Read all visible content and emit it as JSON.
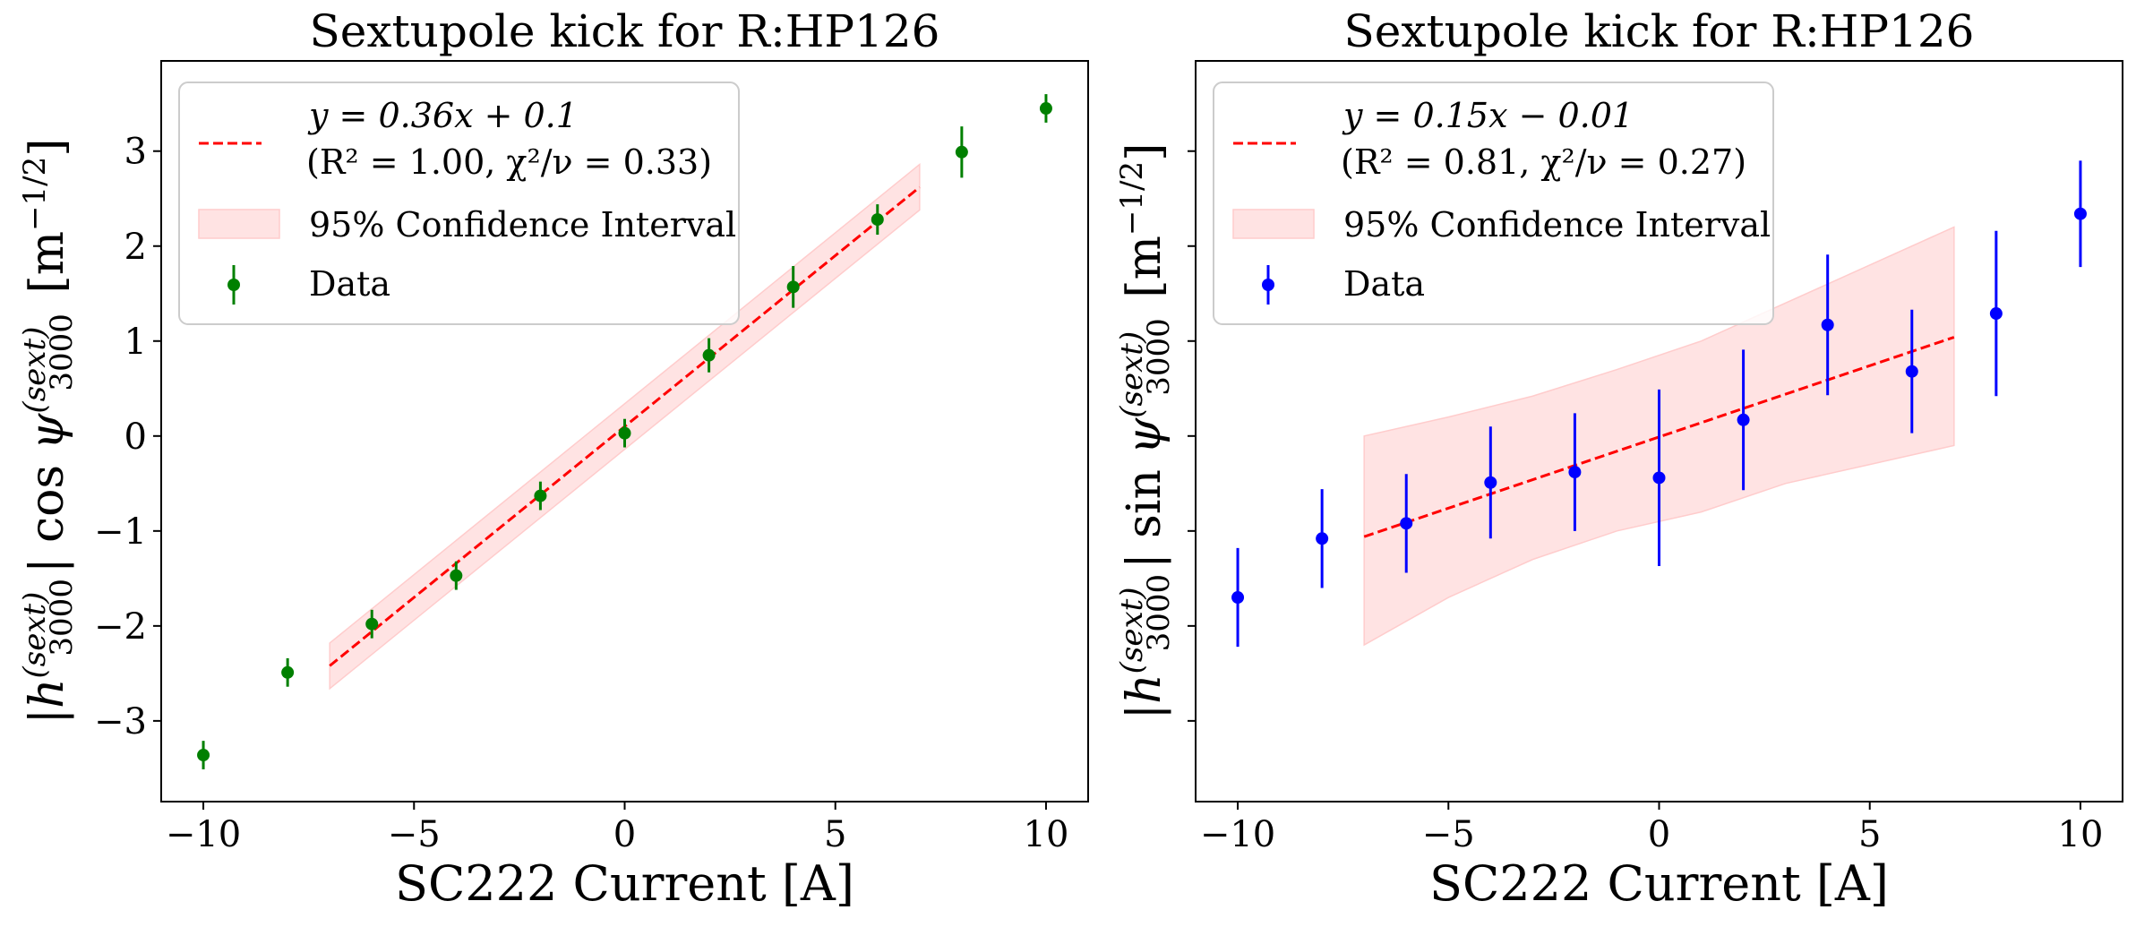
{
  "chart_data": [
    {
      "type": "scatter",
      "title": "Sextupole kick for R:HP126",
      "xlabel": "SC222 Current [A]",
      "ylabel": "|h3000(sext)| cos ψ3000(sext) [m−1/2]",
      "xlim": [
        -11,
        11
      ],
      "ylim": [
        -3.85,
        3.95
      ],
      "xticks": [
        -10,
        -5,
        0,
        5,
        10
      ],
      "xtick_labels": [
        "−10",
        "−5",
        "0",
        "5",
        "10"
      ],
      "yticks": [
        -3,
        -2,
        -1,
        0,
        1,
        2,
        3
      ],
      "ytick_labels": [
        "−3",
        "−2",
        "−1",
        "0",
        "1",
        "2",
        "3"
      ],
      "grid": false,
      "legend_position": "top-left",
      "marker_color": "#008000",
      "fit_color": "#ff0000",
      "band_color": "#ffcccc",
      "fit": {
        "slope": 0.36,
        "intercept": 0.1,
        "x_range": [
          -7,
          7
        ],
        "band_halfwidth": 0.24
      },
      "legend": [
        {
          "label": "y = 0.36x + 0.1",
          "label2": "(R² = 1.00, χ²/ν = 0.33)"
        },
        {
          "label": "95% Confidence Interval"
        },
        {
          "label": "Data"
        }
      ],
      "x": [
        -10,
        -8,
        -6,
        -4,
        -2,
        0,
        2,
        4,
        6,
        8,
        10
      ],
      "y": [
        -3.36,
        -2.49,
        -1.98,
        -1.47,
        -0.63,
        0.03,
        0.85,
        1.57,
        2.28,
        2.99,
        3.45
      ],
      "yerr": [
        0.15,
        0.15,
        0.15,
        0.15,
        0.15,
        0.15,
        0.18,
        0.22,
        0.16,
        0.27,
        0.15
      ]
    },
    {
      "type": "scatter",
      "title": "Sextupole kick for R:HP126",
      "xlabel": "SC222 Current [A]",
      "ylabel": "|h3000(sext)| sin ψ3000(sext) [m−1/2]",
      "xlim": [
        -11,
        11
      ],
      "ylim": [
        -3.85,
        3.95
      ],
      "xticks": [
        -10,
        -5,
        0,
        5,
        10
      ],
      "xtick_labels": [
        "−10",
        "−5",
        "0",
        "5",
        "10"
      ],
      "yticks": [
        -3,
        -2,
        -1,
        0,
        1,
        2,
        3
      ],
      "ytick_labels": [],
      "grid": false,
      "legend_position": "top-left",
      "marker_color": "#0000ff",
      "fit_color": "#ff0000",
      "band_color": "#ffcccc",
      "fit": {
        "slope": 0.15,
        "intercept": -0.01,
        "x_range": [
          -7,
          7
        ]
      },
      "band": {
        "x": [
          -7,
          -5,
          -3,
          -1,
          1,
          3,
          5,
          7
        ],
        "upper": [
          0.0,
          0.2,
          0.42,
          0.7,
          1.0,
          1.4,
          1.8,
          2.2
        ],
        "lower": [
          -2.2,
          -1.7,
          -1.3,
          -1.0,
          -0.8,
          -0.5,
          -0.3,
          -0.1
        ]
      },
      "legend": [
        {
          "label": "y = 0.15x − 0.01",
          "label2": "(R² = 0.81, χ²/ν = 0.27)"
        },
        {
          "label": "95% Confidence Interval"
        },
        {
          "label": "Data"
        }
      ],
      "x": [
        -10,
        -8,
        -6,
        -4,
        -2,
        0,
        2,
        4,
        6,
        8,
        10
      ],
      "y": [
        -1.7,
        -1.08,
        -0.92,
        -0.49,
        -0.38,
        -0.44,
        0.17,
        1.17,
        0.68,
        1.29,
        2.34
      ],
      "yerr": [
        0.52,
        0.52,
        0.52,
        0.59,
        0.62,
        0.93,
        0.74,
        0.74,
        0.65,
        0.87,
        0.56
      ]
    }
  ]
}
